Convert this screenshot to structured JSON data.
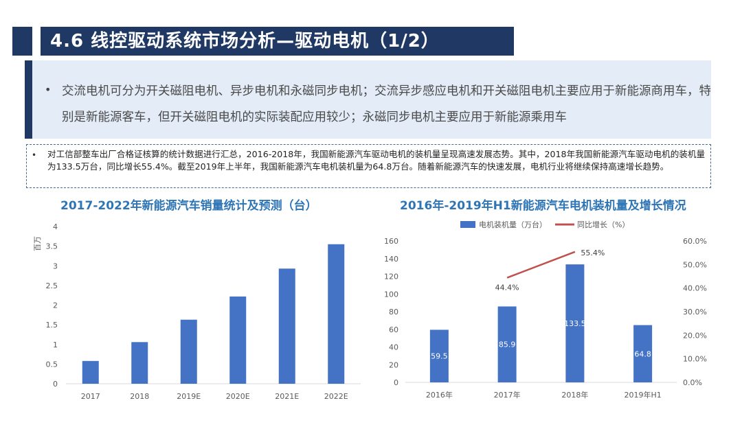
{
  "header": {
    "title": "4.6 线控驱动系统市场分析—驱动电机（1/2）"
  },
  "highlight": {
    "bullet": "•",
    "text": "交流电机可分为开关磁阻电机、异步电机和永磁同步电机；交流异步感应电机和开关磁阻电机主要应用于新能源商用车，特别是新能源客车，但开关磁阻电机的实际装配应用较少；永磁同步电机主要应用于新能源乘用车"
  },
  "note": {
    "bullet": "•",
    "text": "对工信部整车出厂合格证核算的统计数据进行汇总，2016-2018年，我国新能源汽车驱动电机的装机量呈现高速发展态势。其中，2018年我国新能源汽车驱动电机的装机量为133.5万台，同比增长55.4%。截至2019年上半年，我国新能源汽车电机装机量为64.8万台。随着新能源汽车的快速发展，电机行业将继续保持高速增长趋势。"
  },
  "colors": {
    "bar": "#4472c4",
    "line": "#c0504d",
    "title": "#2e75b6",
    "dark": "#1f3864"
  },
  "chart_data": [
    {
      "type": "bar",
      "title": "2017-2022年新能源汽车销量统计及预测（台）",
      "ylabel": "百万",
      "categories": [
        "2017",
        "2018",
        "2019E",
        "2020E",
        "2021E",
        "2022E"
      ],
      "values": [
        0.58,
        1.06,
        1.63,
        2.22,
        2.93,
        3.55
      ],
      "ylim": [
        0,
        4
      ],
      "yticks": [
        "0",
        "0.5",
        "1",
        "1.5",
        "2",
        "2.5",
        "3",
        "3.5",
        "4"
      ],
      "grid": false
    },
    {
      "type": "bar",
      "title": "2016年-2019年H1新能源汽车电机装机量及增长情况",
      "categories": [
        "2016年",
        "2017年",
        "2018年",
        "2019年H1"
      ],
      "series": [
        {
          "name": "电机装机量（万台）",
          "type": "bar",
          "axis": "left",
          "values": [
            59.5,
            85.9,
            133.5,
            64.8
          ],
          "labels": [
            "59.5",
            "85.9",
            "133.5",
            "64.8"
          ]
        },
        {
          "name": "同比增长（%）",
          "type": "line",
          "axis": "right",
          "values": [
            null,
            44.4,
            55.4,
            null
          ],
          "labels": [
            "",
            "44.4%",
            "55.4%",
            ""
          ]
        }
      ],
      "ylim": [
        0,
        160
      ],
      "yticks": [
        "0",
        "20",
        "40",
        "60",
        "80",
        "100",
        "120",
        "140",
        "160"
      ],
      "y2lim": [
        0,
        60
      ],
      "y2ticks": [
        "0.0%",
        "10.0%",
        "20.0%",
        "30.0%",
        "40.0%",
        "50.0%",
        "60.0%"
      ],
      "legend": "top",
      "grid": false
    }
  ]
}
